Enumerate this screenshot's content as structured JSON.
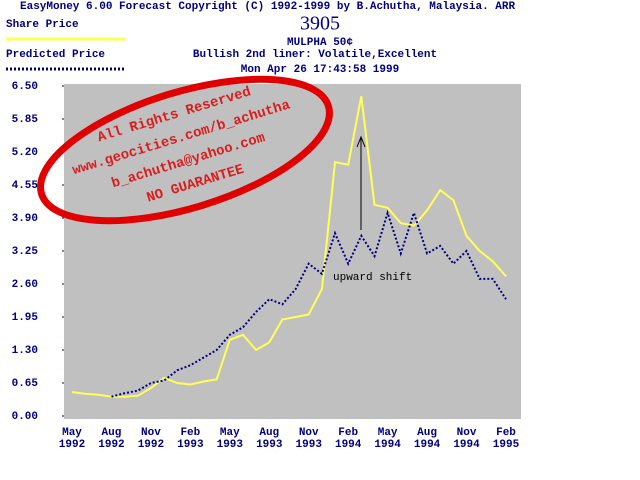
{
  "chart_data": {
    "type": "line",
    "title": "EasyMoney 6.00 Forecast Copyright (C) 1992-1999 by B.Achutha, Malaysia. ARR",
    "code": "3905",
    "stock": "MULPHA 50¢",
    "subtitle": "Bullish  2nd liner: Volatile,Excellent",
    "timestamp": "Mon Apr 26 17:43:58 1999",
    "annotation": "upward shift",
    "stamp": [
      "All Rights Reserved",
      "www.geocities.com/b_achutha",
      "b_achutha@yahoo.com",
      "NO GUARANTEE"
    ],
    "categories": [
      "May 1992",
      null,
      null,
      "Aug 1992",
      null,
      null,
      "Nov 1992",
      null,
      null,
      "Feb 1993",
      null,
      null,
      "May 1993",
      null,
      null,
      "Aug 1993",
      null,
      null,
      "Nov 1993",
      null,
      null,
      "Feb 1994",
      null,
      null,
      "May 1994",
      null,
      null,
      "Aug 1994",
      null,
      null,
      "Nov 1994",
      null,
      null,
      "Feb 1995"
    ],
    "series": [
      {
        "name": "Share Price",
        "color": "#ffff55",
        "style": "solid",
        "values": [
          0.47,
          0.44,
          0.42,
          0.38,
          0.38,
          0.4,
          0.55,
          0.75,
          0.65,
          0.62,
          0.68,
          0.72,
          1.5,
          1.6,
          1.3,
          1.45,
          1.9,
          1.95,
          2.0,
          2.5,
          5.0,
          4.95,
          6.3,
          4.16,
          4.1,
          3.8,
          3.75,
          4.05,
          4.45,
          4.25,
          3.55,
          3.25,
          3.05,
          2.75
        ]
      },
      {
        "name": "Predicted Price",
        "color": "#000080",
        "style": "dotted",
        "values": [
          null,
          null,
          null,
          0.38,
          0.45,
          0.5,
          0.65,
          0.7,
          0.9,
          1.0,
          1.15,
          1.3,
          1.6,
          1.75,
          2.05,
          2.3,
          2.2,
          2.5,
          3.0,
          2.8,
          3.6,
          3.0,
          3.55,
          3.15,
          4.0,
          3.2,
          4.0,
          3.2,
          3.35,
          3.0,
          3.25,
          2.7,
          2.7,
          2.3
        ]
      }
    ],
    "ylim": [
      0,
      6.5
    ],
    "yticks": [
      {
        "value": 0,
        "label": "0.00"
      },
      {
        "value": 0.65,
        "label": "0.65"
      },
      {
        "value": 1.3,
        "label": "1.30"
      },
      {
        "value": 1.95,
        "label": "1.95"
      },
      {
        "value": 2.6,
        "label": "2.60"
      },
      {
        "value": 3.25,
        "label": "3.25"
      },
      {
        "value": 3.9,
        "label": "3.90"
      },
      {
        "value": 4.55,
        "label": "4.55"
      },
      {
        "value": 5.2,
        "label": "5.20"
      },
      {
        "value": 5.85,
        "label": "5.85"
      },
      {
        "value": 6.5,
        "label": "6.50"
      }
    ],
    "plot_color": "#c0c0c0",
    "stamp_color": "#e00000"
  }
}
